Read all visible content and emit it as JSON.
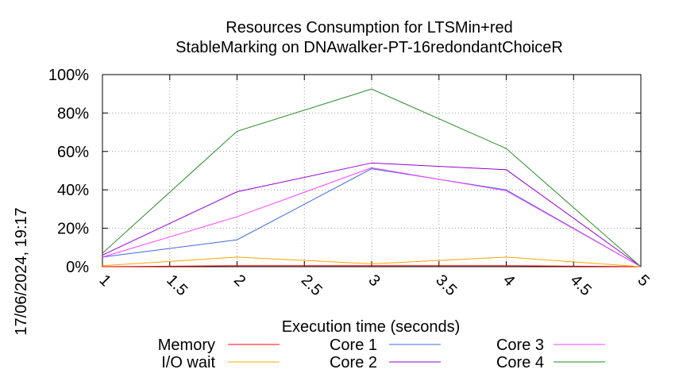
{
  "chart_data": {
    "type": "line",
    "title": "Resources Consumption for LTSMin+red",
    "subtitle": "StableMarking on DNAwalker-PT-16redondantChoiceR",
    "xlabel": "Execution time (seconds)",
    "ylabel": "",
    "xlim": [
      1,
      5
    ],
    "ylim": [
      0,
      100
    ],
    "x_ticks": [
      "1",
      "1.5",
      "2",
      "2.5",
      "3",
      "3.5",
      "4",
      "4.5",
      "5"
    ],
    "y_ticks": [
      "0%",
      "20%",
      "40%",
      "60%",
      "80%",
      "100%"
    ],
    "grid": true,
    "legend_position": "bottom",
    "x": [
      1,
      2,
      3,
      4,
      5
    ],
    "series": [
      {
        "name": "Memory",
        "color": "#ff0000",
        "values": [
          0,
          0.5,
          0.5,
          0.5,
          0
        ]
      },
      {
        "name": "I/O wait",
        "color": "#ffa500",
        "values": [
          0.5,
          5,
          1.5,
          5,
          0
        ]
      },
      {
        "name": "Core 1",
        "color": "#4169e1",
        "values": [
          5,
          14,
          51,
          40,
          0
        ]
      },
      {
        "name": "Core 2",
        "color": "#9400d3",
        "values": [
          6,
          39,
          54,
          50.5,
          0
        ]
      },
      {
        "name": "Core 3",
        "color": "#ff40ff",
        "values": [
          5,
          26,
          51.5,
          39.5,
          0
        ]
      },
      {
        "name": "Core 4",
        "color": "#228b22",
        "values": [
          7,
          70.5,
          92.5,
          61.5,
          0
        ]
      }
    ]
  },
  "timestamp": "17/06/2024, 19:17"
}
